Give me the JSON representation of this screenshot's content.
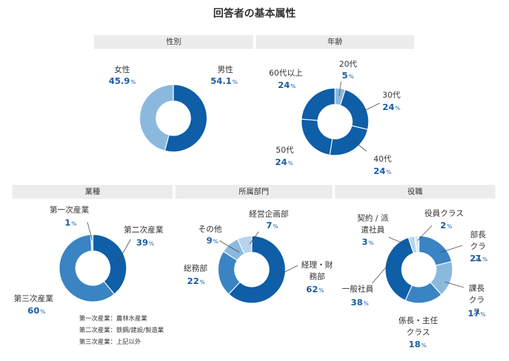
{
  "title": "回答者の基本属性",
  "unit": "%",
  "colors": {
    "dark_blue": "#0e5ea8",
    "mid_blue": "#3a84c4",
    "light_blue": "#8bb9de",
    "pale_blue": "#b7d3ec",
    "header_bg": "#ececec",
    "value_text": "#1b5ea6"
  },
  "chart_data": [
    {
      "type": "pie",
      "title": "性別",
      "donut": true,
      "slices": [
        {
          "name": "男性",
          "value": 54.1
        },
        {
          "name": "女性",
          "value": 45.9
        }
      ],
      "value_labels": [
        "54.1",
        "45.9"
      ]
    },
    {
      "type": "pie",
      "title": "年齢",
      "donut": true,
      "slices": [
        {
          "name": "20代",
          "value": 5
        },
        {
          "name": "30代",
          "value": 24
        },
        {
          "name": "40代",
          "value": 24
        },
        {
          "name": "50代",
          "value": 24
        },
        {
          "name": "60代以上",
          "value": 24
        }
      ],
      "value_labels": [
        "5",
        "24",
        "24",
        "24",
        "24"
      ]
    },
    {
      "type": "pie",
      "title": "業種",
      "donut": true,
      "slices": [
        {
          "name": "第二次産業",
          "value": 39
        },
        {
          "name": "第三次産業",
          "value": 60
        },
        {
          "name": "第一次産業",
          "value": 1
        }
      ],
      "value_labels": [
        "39",
        "60",
        "1"
      ],
      "notes": [
        "第一次産業：農林水産業",
        "第二次産業：鉄鋼/建設/製造業",
        "第三次産業：上記以外"
      ]
    },
    {
      "type": "pie",
      "title": "所属部門",
      "donut": true,
      "slices": [
        {
          "name": "経理・財務部",
          "value": 62
        },
        {
          "name": "総務部",
          "value": 22
        },
        {
          "name": "その他",
          "value": 9
        },
        {
          "name": "経営企画部",
          "value": 7
        }
      ],
      "value_labels": [
        "62",
        "22",
        "9",
        "7"
      ]
    },
    {
      "type": "pie",
      "title": "役職",
      "donut": true,
      "slices": [
        {
          "name": "部長クラス",
          "value": 21
        },
        {
          "name": "課長クラス",
          "value": 17
        },
        {
          "name": "係長・主任クラス",
          "value": 18
        },
        {
          "name": "一般社員",
          "value": 38
        },
        {
          "name": "契約 / 派遣社員",
          "value": 3
        },
        {
          "name": "役員クラス",
          "value": 2
        }
      ],
      "value_labels": [
        "21",
        "17",
        "18",
        "38",
        "3",
        "2"
      ]
    }
  ]
}
